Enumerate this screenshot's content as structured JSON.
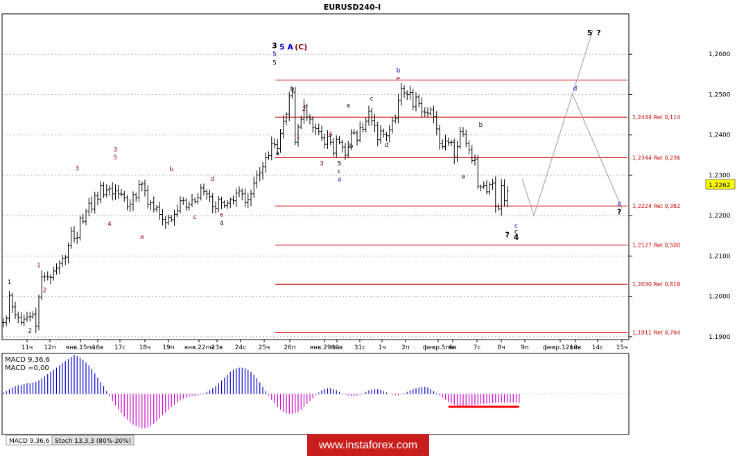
{
  "chart_data": [
    {
      "type": "bar",
      "title": "EURUSD240-I",
      "price_axis": {
        "ticks": [
          "1,2600",
          "1,2500",
          "1,2400",
          "1,2300",
          "1,2200",
          "1,2100",
          "1,2000",
          "1,1900"
        ],
        "tick_values": [
          1.26,
          1.25,
          1.24,
          1.23,
          1.22,
          1.21,
          1.2,
          1.19
        ],
        "current_price": "1,2262",
        "ylim": [
          1.1893,
          1.27
        ]
      },
      "time_axis": {
        "ticks": [
          "11ч",
          "12п",
          "янв.15пн",
          "16в",
          "17с",
          "18ч",
          "19п",
          "янв.22пн",
          "23в",
          "24с",
          "25ч",
          "26п",
          "янв.29пн",
          "30в",
          "31с",
          "1ч",
          "2п",
          "февр.5пн",
          "6в",
          "7с",
          "8ч",
          "9п",
          "февр.12пн",
          "13в",
          "14с",
          "15ч"
        ]
      },
      "ohlc_closes": [
        1.1935,
        1.1946,
        1.2003,
        1.1974,
        1.1954,
        1.1948,
        1.1935,
        1.1944,
        1.1949,
        1.195,
        1.1956,
        1.1926,
        1.1998,
        1.2048,
        1.2049,
        1.2048,
        1.2047,
        1.2063,
        1.207,
        1.2082,
        1.2094,
        1.2097,
        1.2126,
        1.2162,
        1.2143,
        1.2146,
        1.2194,
        1.2186,
        1.2211,
        1.2231,
        1.2216,
        1.2249,
        1.2241,
        1.2275,
        1.2252,
        1.2264,
        1.2267,
        1.2254,
        1.2262,
        1.2254,
        1.2253,
        1.2244,
        1.2223,
        1.2228,
        1.2252,
        1.2244,
        1.2277,
        1.2279,
        1.2263,
        1.2228,
        1.2232,
        1.2216,
        1.2221,
        1.2203,
        1.2191,
        1.2182,
        1.2196,
        1.219,
        1.2203,
        1.2212,
        1.2237,
        1.2238,
        1.2221,
        1.2228,
        1.2239,
        1.2235,
        1.2244,
        1.2269,
        1.226,
        1.2254,
        1.2247,
        1.2222,
        1.2218,
        1.2241,
        1.2232,
        1.2225,
        1.2231,
        1.224,
        1.2237,
        1.2256,
        1.2261,
        1.2254,
        1.2232,
        1.224,
        1.2254,
        1.2281,
        1.2301,
        1.2306,
        1.2321,
        1.2344,
        1.2349,
        1.2379,
        1.2376,
        1.2366,
        1.2404,
        1.2434,
        1.2451,
        1.2497,
        1.2506,
        1.2382,
        1.242,
        1.2439,
        1.2472,
        1.2444,
        1.2439,
        1.2419,
        1.2416,
        1.2409,
        1.2393,
        1.2377,
        1.2396,
        1.2382,
        1.2355,
        1.2389,
        1.2382,
        1.237,
        1.235,
        1.237,
        1.2405,
        1.2405,
        1.2387,
        1.2418,
        1.2414,
        1.2434,
        1.2459,
        1.2436,
        1.2423,
        1.2388,
        1.241,
        1.2401,
        1.2398,
        1.2413,
        1.2435,
        1.2441,
        1.2486,
        1.2515,
        1.2504,
        1.25,
        1.2505,
        1.247,
        1.2494,
        1.2478,
        1.2457,
        1.2456,
        1.2454,
        1.2463,
        1.2445,
        1.2415,
        1.2379,
        1.2371,
        1.2385,
        1.2381,
        1.2382,
        1.2345,
        1.2371,
        1.2409,
        1.2402,
        1.2378,
        1.2363,
        1.2337,
        1.234,
        1.2272,
        1.2271,
        1.2275,
        1.2259,
        1.2277,
        1.2281,
        1.2223,
        1.2217,
        1.2275,
        1.2237,
        1.2262
      ],
      "fib_levels": [
        {
          "value": 1.2536,
          "label": ""
        },
        {
          "value": 1.2444,
          "label": "1,2444 Ret 0,114"
        },
        {
          "value": 1.2344,
          "label": "1,2344 Ret 0,236"
        },
        {
          "value": 1.2224,
          "label": "1,2224 Ret 0,382"
        },
        {
          "value": 1.2127,
          "label": "1,2127 Ret 0,500"
        },
        {
          "value": 1.203,
          "label": "1,2030 Ret 0,618"
        },
        {
          "value": 1.1911,
          "label": "1,1911 Ret 0,764"
        }
      ],
      "forecast_path": [
        {
          "t": 176,
          "v": 1.2292
        },
        {
          "t": 180,
          "v": 1.22
        },
        {
          "t": 200,
          "v": 1.266
        }
      ],
      "forecast_alt": [
        {
          "t": 193,
          "v": 1.2503
        },
        {
          "t": 210,
          "v": 1.2217
        }
      ],
      "wave_labels": [
        {
          "text": "1",
          "color": "#000000",
          "t": 2,
          "v": 1.203,
          "bold": false
        },
        {
          "text": "2",
          "color": "#000000",
          "t": 9,
          "v": 1.191,
          "bold": false
        },
        {
          "text": "1",
          "color": "#8b0000",
          "t": 12,
          "v": 1.2072,
          "bold": false
        },
        {
          "text": "2",
          "color": "#8b0000",
          "t": 14,
          "v": 1.2011,
          "bold": false
        },
        {
          "text": "3",
          "color": "#8b0000",
          "t": 25,
          "v": 1.2313,
          "bold": false
        },
        {
          "text": "4",
          "color": "#8b0000",
          "t": 36,
          "v": 1.2175,
          "bold": false
        },
        {
          "text": "3",
          "color": "#8b0000",
          "t": 38,
          "v": 1.2359,
          "bold": false
        },
        {
          "text": "5",
          "color": "#8b0000",
          "t": 38,
          "v": 1.2339,
          "bold": false
        },
        {
          "text": "a",
          "color": "#8b0000",
          "t": 47,
          "v": 1.2143,
          "bold": false
        },
        {
          "text": "b",
          "color": "#8b0000",
          "t": 57,
          "v": 1.231,
          "bold": false
        },
        {
          "text": "c",
          "color": "#8b0000",
          "t": 65,
          "v": 1.2192,
          "bold": false
        },
        {
          "text": "d",
          "color": "#8b0000",
          "t": 71,
          "v": 1.2286,
          "bold": false
        },
        {
          "text": "e",
          "color": "#8b0000",
          "t": 74,
          "v": 1.2198,
          "bold": false
        },
        {
          "text": "4",
          "color": "#000000",
          "t": 74,
          "v": 1.2176,
          "bold": false
        },
        {
          "text": "3",
          "color": "#000000",
          "t": 92,
          "v": 1.2615,
          "bold": true
        },
        {
          "text": "5",
          "color": "#0000cd",
          "t": 92,
          "v": 1.2595,
          "bold": false
        },
        {
          "text": "5",
          "color": "#000000",
          "t": 92,
          "v": 1.2574,
          "bold": false
        },
        {
          "text": "5 A",
          "color": "#0000cd",
          "t": 96,
          "v": 1.2612,
          "bold": true
        },
        {
          "text": "(C)",
          "color": "#8b0000",
          "t": 101,
          "v": 1.2612,
          "bold": true
        },
        {
          "text": "a",
          "color": "#000000",
          "t": 93,
          "v": 1.235,
          "bold": false
        },
        {
          "text": "b",
          "color": "#000000",
          "t": 98,
          "v": 1.2509,
          "bold": false
        },
        {
          "text": "1",
          "color": "#8b0000",
          "t": 100,
          "v": 1.2392,
          "bold": false
        },
        {
          "text": "2",
          "color": "#8b0000",
          "t": 102,
          "v": 1.246,
          "bold": false
        },
        {
          "text": "3",
          "color": "#8b0000",
          "t": 108,
          "v": 1.2325,
          "bold": false
        },
        {
          "text": "4",
          "color": "#8b0000",
          "t": 111,
          "v": 1.2397,
          "bold": false
        },
        {
          "text": "5",
          "color": "#000000",
          "t": 114,
          "v": 1.2325,
          "bold": false
        },
        {
          "text": "c",
          "color": "#000000",
          "t": 114,
          "v": 1.2305,
          "bold": false
        },
        {
          "text": "a",
          "color": "#0000cd",
          "t": 114,
          "v": 1.2285,
          "bold": false
        },
        {
          "text": "a",
          "color": "#000000",
          "t": 117,
          "v": 1.2468,
          "bold": false
        },
        {
          "text": "b",
          "color": "#000000",
          "t": 118,
          "v": 1.2368,
          "bold": false
        },
        {
          "text": "c",
          "color": "#000000",
          "t": 125,
          "v": 1.2485,
          "bold": false
        },
        {
          "text": "d",
          "color": "#000000",
          "t": 130,
          "v": 1.237,
          "bold": false
        },
        {
          "text": "b",
          "color": "#0000cd",
          "t": 134,
          "v": 1.2555,
          "bold": false
        },
        {
          "text": "e",
          "color": "#8b0000",
          "t": 134,
          "v": 1.2535,
          "bold": false
        },
        {
          "text": "a",
          "color": "#000000",
          "t": 156,
          "v": 1.2292,
          "bold": false
        },
        {
          "text": "b",
          "color": "#000000",
          "t": 162,
          "v": 1.242,
          "bold": false
        },
        {
          "text": "c",
          "color": "#0000cd",
          "t": 174,
          "v": 1.217,
          "bold": false
        },
        {
          "text": "c",
          "color": "#000000",
          "t": 174,
          "v": 1.2156,
          "bold": false
        },
        {
          "text": "4",
          "color": "#000000",
          "t": 174,
          "v": 1.214,
          "bold": true
        },
        {
          "text": "?",
          "color": "#000000",
          "t": 171,
          "v": 1.2146,
          "bold": true
        },
        {
          "text": "d",
          "color": "#0000cd",
          "t": 194,
          "v": 1.251,
          "bold": false
        },
        {
          "text": "5",
          "color": "#000000",
          "t": 199,
          "v": 1.2647,
          "bold": true
        },
        {
          "text": "?",
          "color": "#000000",
          "t": 202,
          "v": 1.2647,
          "bold": true
        },
        {
          "text": "e",
          "color": "#0000cd",
          "t": 209,
          "v": 1.2224,
          "bold": false
        },
        {
          "text": "?",
          "color": "#000000",
          "t": 209,
          "v": 1.2203,
          "bold": true
        }
      ]
    },
    {
      "type": "bar",
      "title": "MACD 9,36,6",
      "macd_label": "MACD =0,00",
      "ylim": [
        -0.0055,
        0.0055
      ],
      "values": [
        0.0002,
        0.0004,
        0.0007,
        0.0009,
        0.0011,
        0.0012,
        0.0013,
        0.0014,
        0.0015,
        0.0015,
        0.0016,
        0.0017,
        0.0019,
        0.0022,
        0.0025,
        0.0028,
        0.0031,
        0.0034,
        0.0037,
        0.004,
        0.0043,
        0.0046,
        0.0049,
        0.0052,
        0.0055,
        0.0053,
        0.0051,
        0.0048,
        0.0044,
        0.004,
        0.0035,
        0.0029,
        0.0023,
        0.0017,
        0.0011,
        0.0004,
        -0.0003,
        -0.001,
        -0.0016,
        -0.0022,
        -0.0027,
        -0.0032,
        -0.0036,
        -0.004,
        -0.0043,
        -0.0045,
        -0.0047,
        -0.0048,
        -0.0048,
        -0.0047,
        -0.0045,
        -0.0042,
        -0.0038,
        -0.0034,
        -0.003,
        -0.0026,
        -0.0022,
        -0.0018,
        -0.0015,
        -0.0012,
        -0.0009,
        -0.0007,
        -0.0005,
        -0.0004,
        -0.0003,
        -0.0003,
        -0.0002,
        -0.0001,
        0.0001,
        0.0003,
        0.0005,
        0.0008,
        0.0011,
        0.0015,
        0.0019,
        0.0023,
        0.0027,
        0.0031,
        0.0034,
        0.0036,
        0.0037,
        0.0037,
        0.0036,
        0.0034,
        0.0031,
        0.0027,
        0.0022,
        0.0016,
        0.001,
        0.0004,
        -0.0002,
        -0.0008,
        -0.0013,
        -0.0018,
        -0.0022,
        -0.0025,
        -0.0027,
        -0.0028,
        -0.0028,
        -0.0027,
        -0.0025,
        -0.0022,
        -0.0018,
        -0.0014,
        -0.001,
        -0.0006,
        -0.0002,
        0.0002,
        0.0005,
        0.0007,
        0.0008,
        0.0008,
        0.0007,
        0.0005,
        0.0003,
        0.0001,
        -0.0001,
        -0.0002,
        -0.0003,
        -0.0003,
        -0.0002,
        -0.0001,
        0.0001,
        0.0003,
        0.0005,
        0.0006,
        0.0007,
        0.0007,
        0.0006,
        0.0004,
        0.0002,
        0.0,
        -0.0001,
        -0.0002,
        -0.0002,
        -0.0001,
        0.0001,
        0.0003,
        0.0005,
        0.0007,
        0.0008,
        0.0009,
        0.001,
        0.001,
        0.0009,
        0.0007,
        0.0004,
        0.0001,
        -0.0002,
        -0.0005,
        -0.0008,
        -0.0011,
        -0.0013,
        -0.0015,
        -0.0016,
        -0.0017,
        -0.0017,
        -0.0017,
        -0.0016,
        -0.0016,
        -0.0015,
        -0.0015,
        -0.0014,
        -0.0014,
        -0.0013,
        -0.0013,
        -0.0013,
        -0.0012,
        -0.0012,
        -0.0012,
        -0.0012,
        -0.0012,
        -0.0012,
        -0.0012,
        -0.0012,
        -0.0012
      ],
      "positive_color": "#0000cd",
      "negative_color": "#cc00cc",
      "marker_color": "#ff0000"
    }
  ],
  "panel_tabs": [
    "MACD 9,36,6",
    "Stoch 13,3,3 (80%-20%)"
  ],
  "watermark": "www.instaforex.com"
}
